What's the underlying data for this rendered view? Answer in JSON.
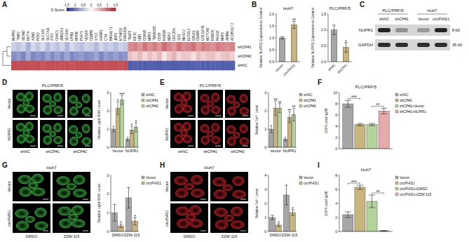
{
  "chart_data": [
    {
      "type": "heatmap",
      "columns": [
        "NUPR1",
        "TRIB3",
        "SESN2",
        "DDIT4",
        "ASNS",
        "PCK2",
        "SLC3A2",
        "SLC7A11",
        "ATF3",
        "CHAC1",
        "ARRDC3",
        "SLC6A9",
        "LPIN1",
        "RHOB",
        "PSAT1",
        "VEGFA",
        "CEBPB",
        "STC2",
        "IGFBP1",
        "CTH",
        "B4GALT1",
        "JDP2",
        "MTHFD2",
        "FAM129A",
        "TRAF5",
        "KIF1C",
        "UBD",
        "CDKN3",
        "NPM3",
        "TMEM158",
        "CD68",
        "MAP1B",
        "NEK2",
        "CDC25A",
        "SIX1",
        "NKX2-2",
        "ELOVL2",
        "GPLD1",
        "CENPF",
        "GOLGA7B",
        "NOTCH3",
        "MOB3C",
        "RGS16",
        "NRP2",
        "AMBN",
        "AC245017.3"
      ],
      "rows": [
        "shCP#1",
        "shCP#2",
        "shNC"
      ],
      "cells": [
        [
          -0.35,
          -0.42,
          -0.3,
          -0.55,
          -0.28,
          -0.4,
          -0.25,
          -0.48,
          -0.33,
          -0.45,
          -0.3,
          -0.52,
          -0.27,
          -0.38,
          -0.44,
          -0.31,
          -0.36,
          -0.5,
          -0.29,
          -0.41,
          -0.34,
          -0.47,
          -0.32,
          -0.39,
          0.75,
          0.82,
          0.68,
          0.9,
          0.72,
          0.85,
          0.7,
          0.95,
          0.78,
          0.66,
          0.88,
          0.74,
          0.8,
          0.92,
          0.69,
          0.83,
          0.77,
          0.71,
          0.86,
          0.79,
          0.73,
          0.81
        ],
        [
          -0.8,
          -0.71,
          -0.85,
          -0.59,
          -0.84,
          -0.75,
          -0.85,
          -0.66,
          -0.82,
          -0.68,
          -0.82,
          -0.63,
          -0.84,
          -0.76,
          -0.71,
          -0.82,
          -0.76,
          -0.64,
          -0.86,
          -0.69,
          -0.79,
          -0.68,
          -0.8,
          -0.75,
          0.4,
          0.31,
          0.46,
          0.25,
          0.4,
          0.29,
          0.45,
          0.16,
          0.35,
          0.49,
          0.26,
          0.38,
          0.35,
          0.21,
          0.41,
          0.31,
          0.38,
          0.41,
          0.27,
          0.36,
          0.41,
          0.31
        ],
        [
          1.15,
          1.13,
          1.15,
          1.14,
          1.12,
          1.15,
          1.1,
          1.14,
          1.15,
          1.13,
          1.12,
          1.15,
          1.11,
          1.14,
          1.15,
          1.13,
          1.12,
          1.14,
          1.15,
          1.1,
          1.13,
          1.15,
          1.12,
          1.14,
          -1.15,
          -1.13,
          -1.14,
          -1.15,
          -1.12,
          -1.14,
          -1.15,
          -1.11,
          -1.13,
          -1.15,
          -1.14,
          -1.12,
          -1.15,
          -1.13,
          -1.1,
          -1.14,
          -1.15,
          -1.12,
          -1.13,
          -1.15,
          -1.14,
          -1.12
        ]
      ],
      "color_bar": {
        "title": "Z-Score",
        "range": [
          -1.5,
          1.5
        ],
        "ticks": [
          -1.5,
          -1,
          -0.5,
          0,
          0.5,
          1,
          1.5
        ]
      }
    },
    {
      "type": "bar",
      "title": "Huh7",
      "y_label": "Relative NUPR1 Expression to Control",
      "categories": [
        "Vector",
        "circPIAS1"
      ],
      "values": [
        1,
        1.55
      ],
      "errors": [
        0.05,
        0.15
      ],
      "colors": [
        "#a6a6a6",
        "#c8b47c"
      ],
      "ylim": [
        0,
        2
      ],
      "yticks": [
        {
          "value": 0,
          "label": "0.0"
        },
        0.5,
        {
          "value": 1,
          "label": "1.0"
        },
        1.5,
        {
          "value": 2,
          "label": "2.0"
        }
      ],
      "annotations": [
        {
          "text": "**",
          "category": "circPIAS1"
        }
      ]
    },
    {
      "type": "bar",
      "title": "PLC/PRF/5",
      "y_label": "Relative NUPR1 Expression to Control",
      "categories": [
        "shNC",
        "shCP#1"
      ],
      "values": [
        1,
        0.45
      ],
      "errors": [
        0.15,
        0.15
      ],
      "colors": [
        "#a6a6a6",
        "#c8b47c"
      ],
      "ylim": [
        0,
        1.5
      ],
      "yticks": [
        {
          "value": 0,
          "label": "0.0"
        },
        0.5,
        {
          "value": 1,
          "label": "1.0"
        },
        1.5
      ],
      "annotations": [
        {
          "text": "*",
          "category": "shCP#1"
        }
      ]
    },
    {
      "type": "bar",
      "y_label": "Relative Lipid ROS Level",
      "categories": [
        "Vector",
        "NUPR1"
      ],
      "series": [
        {
          "name": "shNC",
          "color": "#a6a6a6",
          "values": [
            1,
            0.45
          ],
          "errors": [
            0.15,
            0.1
          ]
        },
        {
          "name": "shCP#1",
          "color": "#c8b47c",
          "values": [
            2.15,
            0.95
          ],
          "errors": [
            0.35,
            0.2
          ]
        },
        {
          "name": "shCP#2",
          "color": "#b3d39a",
          "values": [
            2.6,
            1.1
          ],
          "errors": [
            0.25,
            0.25
          ]
        }
      ],
      "ylim": [
        0,
        3
      ],
      "yticks": [
        0,
        1,
        2,
        3
      ],
      "legend": "right",
      "annotations": [
        {
          "text": "*",
          "category": "Vector",
          "series": "shCP#1"
        },
        {
          "text": "***",
          "category": "Vector",
          "series": "shCP#2"
        },
        {
          "text": "*",
          "category": "NUPR1",
          "series": "shCP#1"
        },
        {
          "text": "*",
          "category": "NUPR1",
          "series": "shCP#2"
        }
      ]
    },
    {
      "type": "bar",
      "y_label": "Relative Fe²⁺ Level",
      "categories": [
        "Vector",
        "NUPR1"
      ],
      "series": [
        {
          "name": "shNC",
          "color": "#a6a6a6",
          "values": [
            1,
            0.45
          ],
          "errors": [
            0.2,
            0.1
          ]
        },
        {
          "name": "shCP#1",
          "color": "#c8b47c",
          "values": [
            2.15,
            1.65
          ],
          "errors": [
            0.4,
            0.3
          ]
        },
        {
          "name": "shCP#2",
          "color": "#b3d39a",
          "values": [
            2.15,
            1.8
          ],
          "errors": [
            0.25,
            0.35
          ]
        }
      ],
      "ylim": [
        0,
        3
      ],
      "yticks": [
        0,
        1,
        2,
        3
      ],
      "legend": "right",
      "annotations": [
        {
          "text": "**",
          "category": "Vector",
          "series": "shCP#1"
        },
        {
          "text": "**",
          "category": "Vector",
          "series": "shCP#2"
        },
        {
          "text": "**",
          "category": "NUPR1",
          "series": "shCP#1"
        },
        {
          "text": "**",
          "category": "NUPR1",
          "series": "shCP#2"
        }
      ]
    },
    {
      "type": "bar",
      "title": "PLC/PRF/5",
      "y_label": "GSH Level (μM)",
      "categories": [
        null
      ],
      "series": [
        {
          "name": "shNC",
          "color": "#a6a6a6",
          "values": [
            8
          ],
          "errors": [
            0.6
          ]
        },
        {
          "name": "shCP#1",
          "color": "#c8b47c",
          "values": [
            4.3
          ],
          "errors": [
            0.2
          ]
        },
        {
          "name": "shCP#1+Vector",
          "color": "#b3d39a",
          "values": [
            4.3
          ],
          "errors": [
            0.2
          ]
        },
        {
          "name": "shCP#1+NUPR1",
          "color": "#e6a9ac",
          "values": [
            6.7
          ],
          "errors": [
            0.5
          ]
        }
      ],
      "ylim": [
        0,
        10
      ],
      "yticks": [
        0,
        2,
        4,
        6,
        8,
        10
      ],
      "legend": "right",
      "annotations": [
        {
          "text": "***",
          "from": "shNC",
          "to": "shCP#1"
        },
        {
          "text": "**",
          "from": "shCP#1+Vector",
          "to": "shCP#1+NUPR1"
        }
      ]
    },
    {
      "type": "bar",
      "y_label": "Relative Lipid ROS Level",
      "categories": [
        "DMSO",
        "ZZW-115"
      ],
      "series": [
        {
          "name": "Vector",
          "color": "#a6a6a6",
          "values": [
            1,
            1.8
          ],
          "errors": [
            0.45,
            0.55
          ]
        },
        {
          "name": "circPIAS1",
          "color": "#c8b47c",
          "values": [
            0.3,
            0.55
          ],
          "errors": [
            0.1,
            0.2
          ]
        }
      ],
      "ylim": [
        0,
        3
      ],
      "yticks": [
        0,
        1,
        2,
        3
      ],
      "legend": "right",
      "annotations": [
        {
          "text": "*",
          "category": "DMSO",
          "series": "circPIAS1"
        },
        {
          "text": "*",
          "category": "ZZW-115",
          "series": "circPIAS1"
        }
      ]
    },
    {
      "type": "bar",
      "y_label": "Relative Fe²⁺ Level",
      "categories": [
        "DMSO",
        "ZZW-115"
      ],
      "series": [
        {
          "name": "Vector",
          "color": "#a6a6a6",
          "values": [
            1,
            2.6
          ],
          "errors": [
            0.15,
            0.7
          ]
        },
        {
          "name": "circPIAS1",
          "color": "#c8b47c",
          "values": [
            0.45,
            1.35
          ],
          "errors": [
            0.1,
            0.2
          ]
        }
      ],
      "ylim": [
        0,
        4
      ],
      "yticks": [
        0,
        1,
        2,
        3,
        4
      ],
      "legend": "right",
      "annotations": [
        {
          "text": "*",
          "category": "DMSO",
          "series": "circPIAS1"
        },
        {
          "text": "*",
          "category": "ZZW-115",
          "series": "circPIAS1"
        }
      ]
    },
    {
      "type": "bar",
      "title": "Huh7",
      "y_label": "GSH Level (μM)",
      "categories": [
        null
      ],
      "series": [
        {
          "name": "Vector",
          "color": "#a6a6a6",
          "values": [
            2.4
          ],
          "errors": [
            0.4
          ]
        },
        {
          "name": "circPIAS1",
          "color": "#c8b47c",
          "values": [
            6.3
          ],
          "errors": [
            0.3
          ]
        },
        {
          "name": "circPIAS1+DMSO",
          "color": "#b3d39a",
          "values": [
            4.3
          ],
          "errors": [
            0.9
          ]
        },
        {
          "name": "circPIAS1+ZZW-115",
          "color": "#e6a9ac",
          "values": [
            0.1
          ],
          "errors": [
            0.05
          ]
        }
      ],
      "ylim": [
        0,
        8
      ],
      "yticks": [
        0,
        2,
        4,
        6,
        8
      ],
      "legend": "right",
      "annotations": [
        {
          "text": "***",
          "from": "Vector",
          "to": "circPIAS1"
        },
        {
          "text": "**",
          "from": "circPIAS1+DMSO",
          "to": "circPIAS1+ZZW-115"
        }
      ]
    }
  ],
  "figure": {
    "panel_labels": [
      "A",
      "B",
      "C",
      "D",
      "E",
      "F",
      "G",
      "H",
      "I"
    ],
    "blot": {
      "groups": [
        {
          "name": "PLC/PRF/5",
          "lanes": [
            "shNC",
            "shCP#1"
          ]
        },
        {
          "name": "Huh7",
          "lanes": [
            "Vector",
            "circPIAS1"
          ]
        }
      ],
      "bands": [
        {
          "protein": "NUPR1",
          "size": "8 kD",
          "intensity": [
            0.9,
            0.35,
            0.3,
            0.9
          ]
        },
        {
          "protein": "GAPDH",
          "size": "35 kD",
          "intensity": [
            0.85,
            0.85,
            0.85,
            0.85
          ]
        }
      ]
    },
    "images": [
      {
        "title": "PLC/PRF/5",
        "rows": [
          "Vector",
          "NUPR1"
        ],
        "columns": [
          "shNC",
          "shCP#1",
          "shCP#2"
        ],
        "color": "#3fd24a"
      },
      {
        "title": "PLC/PRF/5",
        "rows": [
          "Vector",
          "NUPR1"
        ],
        "columns": [
          "shNC",
          "shCP#1",
          "shCP#2"
        ],
        "color": "#e8262e"
      },
      {
        "title": "Huh7",
        "rows": [
          "Vector",
          "circPIAS1"
        ],
        "columns": [
          "DMSO",
          "ZZW-115"
        ],
        "color": "#3fd24a"
      },
      {
        "title": "Huh7",
        "rows": [
          "Vector",
          "circPIAS1"
        ],
        "columns": [
          "DMSO",
          "ZZW-115"
        ],
        "color": "#e8262e"
      }
    ]
  }
}
